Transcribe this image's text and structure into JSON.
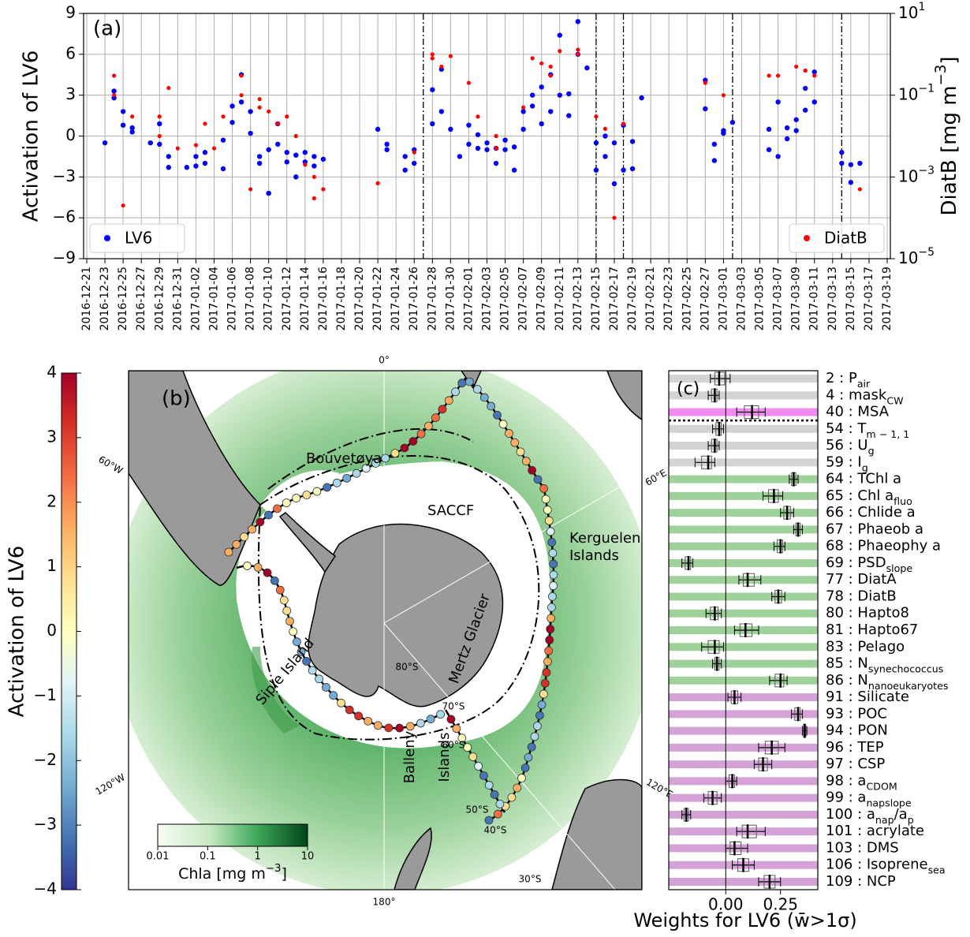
{
  "chart_data": [
    {
      "type": "scatter",
      "panel_label": "(a)",
      "y_label": "Activation of LV6",
      "y2_label": [
        "DiatB [mg m",
        "−3",
        "]"
      ],
      "xlim": [
        "2016-12-21",
        "2017-03-19"
      ],
      "xticks": [
        "2016-12-21",
        "2016-12-23",
        "2016-12-25",
        "2016-12-27",
        "2016-12-29",
        "2016-12-31",
        "2017-01-02",
        "2017-01-04",
        "2017-01-06",
        "2017-01-08",
        "2017-01-10",
        "2017-01-12",
        "2017-01-14",
        "2017-01-16",
        "2017-01-18",
        "2017-01-20",
        "2017-01-22",
        "2017-01-24",
        "2017-01-26",
        "2017-01-28",
        "2017-01-30",
        "2017-02-01",
        "2017-02-03",
        "2017-02-05",
        "2017-02-07",
        "2017-02-09",
        "2017-02-11",
        "2017-02-13",
        "2017-02-15",
        "2017-02-17",
        "2017-02-19",
        "2017-02-21",
        "2017-02-23",
        "2017-02-25",
        "2017-02-27",
        "2017-03-01",
        "2017-03-03",
        "2017-03-05",
        "2017-03-07",
        "2017-03-09",
        "2017-03-11",
        "2017-03-13",
        "2017-03-15",
        "2017-03-17",
        "2017-03-19"
      ],
      "ylim": [
        -9,
        9
      ],
      "yticks": [
        {
          "value": -9,
          "label": "−9"
        },
        {
          "value": -6,
          "label": "−6"
        },
        {
          "value": -3,
          "label": "−3"
        },
        0,
        3,
        6,
        9
      ],
      "y2lim": [
        1e-05,
        10
      ],
      "y2log": true,
      "y2ticks": [
        {
          "value": 1e-05,
          "label": "10",
          "exponent": "−5"
        },
        {
          "value": 0.001,
          "label": "10",
          "exponent": "−3"
        },
        {
          "value": 0.1,
          "label": "10",
          "exponent": "−1"
        },
        {
          "value": 10,
          "label": "10",
          "exponent": "1"
        }
      ],
      "grid": true,
      "event_lines": [
        "2017-01-27",
        "2017-02-15",
        "2017-02-18",
        "2017-03-02",
        "2017-03-14"
      ],
      "series": [
        {
          "name": "LV6",
          "color": "#0000ff",
          "legend": "lower left",
          "x": [
            "2016-12-23",
            "2016-12-24",
            "2016-12-24",
            "2016-12-25",
            "2016-12-25",
            "2016-12-26",
            "2016-12-26",
            "2016-12-28",
            "2016-12-29",
            "2016-12-29",
            "2016-12-30",
            "2016-12-30",
            "2017-01-01",
            "2017-01-02",
            "2017-01-02",
            "2017-01-03",
            "2017-01-03",
            "2017-01-05",
            "2017-01-05",
            "2017-01-06",
            "2017-01-06",
            "2017-01-07",
            "2017-01-07",
            "2017-01-08",
            "2017-01-08",
            "2017-01-09",
            "2017-01-09",
            "2017-01-10",
            "2017-01-10",
            "2017-01-11",
            "2017-01-11",
            "2017-01-12",
            "2017-01-12",
            "2017-01-13",
            "2017-01-13",
            "2017-01-14",
            "2017-01-14",
            "2017-01-15",
            "2017-01-15",
            "2017-01-16",
            "2017-01-22",
            "2017-01-23",
            "2017-01-23",
            "2017-01-25",
            "2017-01-25",
            "2017-01-26",
            "2017-01-26",
            "2017-01-28",
            "2017-01-28",
            "2017-01-29",
            "2017-01-29",
            "2017-01-30",
            "2017-01-31",
            "2017-02-01",
            "2017-02-01",
            "2017-02-02",
            "2017-02-02",
            "2017-02-03",
            "2017-02-03",
            "2017-02-04",
            "2017-02-04",
            "2017-02-05",
            "2017-02-05",
            "2017-02-06",
            "2017-02-06",
            "2017-02-07",
            "2017-02-07",
            "2017-02-08",
            "2017-02-08",
            "2017-02-09",
            "2017-02-09",
            "2017-02-10",
            "2017-02-10",
            "2017-02-11",
            "2017-02-11",
            "2017-02-12",
            "2017-02-12",
            "2017-02-13",
            "2017-02-13",
            "2017-02-14",
            "2017-02-15",
            "2017-02-15",
            "2017-02-16",
            "2017-02-16",
            "2017-02-17",
            "2017-02-17",
            "2017-02-18",
            "2017-02-18",
            "2017-02-19",
            "2017-02-19",
            "2017-02-20",
            "2017-02-27",
            "2017-02-27",
            "2017-02-28",
            "2017-02-28",
            "2017-03-01",
            "2017-03-01",
            "2017-03-02",
            "2017-03-06",
            "2017-03-06",
            "2017-03-07",
            "2017-03-07",
            "2017-03-08",
            "2017-03-08",
            "2017-03-09",
            "2017-03-09",
            "2017-03-10",
            "2017-03-10",
            "2017-03-11",
            "2017-03-11",
            "2017-03-14",
            "2017-03-14",
            "2017-03-15",
            "2017-03-15",
            "2017-03-16"
          ],
          "values": [
            -0.5,
            2.8,
            3.3,
            0.8,
            1.8,
            0.6,
            0.3,
            -0.5,
            -0.6,
            0.9,
            -1.5,
            -2.3,
            -2.3,
            -1.5,
            -2.2,
            -1.2,
            -2.0,
            -0.3,
            -2.4,
            1.0,
            2.2,
            2.5,
            4.5,
            1.8,
            0.2,
            -1.5,
            -2.0,
            -4.2,
            -1.0,
            0.9,
            -0.6,
            -1.2,
            -1.9,
            -1.4,
            -3.0,
            -1.9,
            -1.2,
            -2.2,
            -1.5,
            -1.7,
            0.5,
            -0.6,
            -1.0,
            -2.5,
            -1.5,
            -2.0,
            -1.0,
            0.9,
            3.4,
            4.9,
            1.8,
            0.5,
            -1.5,
            0.8,
            -0.6,
            0.1,
            -0.9,
            -1.0,
            -0.5,
            -2.0,
            -0.9,
            -1.0,
            -0.3,
            -2.5,
            -0.8,
            0.5,
            1.8,
            3.0,
            2.2,
            3.6,
            0.9,
            1.8,
            4.5,
            7.4,
            3.0,
            1.5,
            3.1,
            8.4,
            6.0,
            5.0,
            -0.5,
            -2.5,
            -1.5,
            0.0,
            -0.5,
            -3.5,
            -2.5,
            0.8,
            -2.4,
            -0.4,
            2.8,
            4.1,
            2.0,
            -0.6,
            -1.8,
            0.2,
            0.4,
            1.0,
            0.5,
            -1.0,
            2.5,
            -1.5,
            0.6,
            -0.2,
            1.2,
            0.4,
            3.5,
            1.9,
            4.7,
            2.5,
            -1.2,
            -2.0,
            -3.4,
            -2.1,
            -2.0
          ]
        },
        {
          "name": "DiatB",
          "color": "#ff0000",
          "axis": "y2",
          "legend": "lower right",
          "x": [
            "2016-12-24",
            "2016-12-24",
            "2016-12-25",
            "2016-12-26",
            "2016-12-29",
            "2016-12-29",
            "2016-12-30",
            "2016-12-31",
            "2017-01-02",
            "2017-01-03",
            "2017-01-04",
            "2017-01-05",
            "2017-01-07",
            "2017-01-07",
            "2017-01-08",
            "2017-01-09",
            "2017-01-09",
            "2017-01-10",
            "2017-01-11",
            "2017-01-12",
            "2017-01-13",
            "2017-01-14",
            "2017-01-15",
            "2017-01-15",
            "2017-01-16",
            "2017-01-22",
            "2017-01-26",
            "2017-01-28",
            "2017-01-28",
            "2017-01-29",
            "2017-01-30",
            "2017-02-01",
            "2017-02-02",
            "2017-02-04",
            "2017-02-04",
            "2017-02-07",
            "2017-02-08",
            "2017-02-09",
            "2017-02-10",
            "2017-02-10",
            "2017-02-11",
            "2017-02-13",
            "2017-02-13",
            "2017-02-15",
            "2017-02-16",
            "2017-02-17",
            "2017-02-18",
            "2017-02-27",
            "2017-03-01",
            "2017-03-06",
            "2017-03-07",
            "2017-03-09",
            "2017-03-10",
            "2017-03-10",
            "2017-03-11",
            "2017-03-16"
          ],
          "values": [
            0.3,
            0.1,
            0.0002,
            0.03,
            0.03,
            0.01,
            0.15,
            0.005,
            0.006,
            0.02,
            0.005,
            0.03,
            0.3,
            0.1,
            0.0005,
            0.08,
            0.05,
            0.04,
            0.02,
            0.03,
            0.01,
            0.002,
            0.0003,
            0.001,
            0.0005,
            0.0007,
            0.004,
            0.8,
            1.0,
            0.5,
            0.9,
            0.2,
            0.03,
            0.005,
            0.01,
            0.05,
            0.8,
            0.6,
            0.5,
            0.3,
            1.2,
            1.3,
            1.0,
            0.03,
            0.015,
            0.0001,
            0.02,
            0.2,
            0.1,
            0.3,
            0.3,
            0.5,
            0.4,
            0.4,
            0.3,
            0.0005
          ]
        }
      ]
    },
    {
      "type": "map",
      "panel_label": "(b)",
      "meridians": [
        "0°",
        "60°E",
        "120°E",
        "180°",
        "120°W",
        "60°W"
      ],
      "parallels": [
        "80°S",
        "70°S",
        "60°S",
        "50°S",
        "40°S",
        "30°S"
      ],
      "places": [
        "Bouvetøya",
        "SACCF",
        [
          "Kerguelen",
          "Islands"
        ],
        "Mertz Glacier",
        "Siple Island",
        [
          "Balleny",
          "Islands"
        ]
      ],
      "colorbar": {
        "label": "Activation of LV6",
        "lim": [
          -4,
          4
        ],
        "ticks": [
          {
            "value": -4,
            "label": "−4"
          },
          {
            "value": -3,
            "label": "−3"
          },
          {
            "value": -2,
            "label": "−2"
          },
          {
            "value": -1,
            "label": "−1"
          },
          0,
          1,
          2,
          3,
          4
        ]
      },
      "chla_colorbar": {
        "label": [
          "Chla [mg m",
          "−3",
          "]"
        ],
        "lim": [
          0.01,
          10
        ],
        "log": true,
        "ticks": [
          0.01,
          0.1,
          1,
          10
        ]
      }
    },
    {
      "type": "box",
      "panel_label": "(c)",
      "x_label": "Weights for LV6 (w̄>1σ)",
      "xlim": [
        -0.26,
        0.42
      ],
      "xticks": [
        {
          "value": 0,
          "label": "0.00"
        },
        {
          "value": 0.25,
          "label": "0.25"
        }
      ],
      "separator_after": 2,
      "labels": [
        [
          "2 : P",
          "air"
        ],
        [
          "4 : mask",
          "CW"
        ],
        [
          "40 : MSA"
        ],
        [
          "54 : T",
          "m − 1, 1"
        ],
        [
          "56 : U",
          "g"
        ],
        [
          "59 : I",
          "g"
        ],
        [
          "64 : TChl a"
        ],
        [
          "65 : Chl a",
          "fluo"
        ],
        [
          "66 : Chlide a"
        ],
        [
          "67 : Phaeob a"
        ],
        [
          "68 : Phaeophy a"
        ],
        [
          "69 : PSD",
          "slope"
        ],
        [
          "77 : DiatA"
        ],
        [
          "78 : DiatB"
        ],
        [
          "80 : Hapto8"
        ],
        [
          "81 : Hapto67"
        ],
        [
          "83 : Pelago"
        ],
        [
          "85 : N",
          "synechococcus"
        ],
        [
          "86 : N",
          "nanoeukaryotes"
        ],
        [
          "91 : Silicate"
        ],
        [
          "93 : POC"
        ],
        [
          "94 : PON"
        ],
        [
          "96 : TEP"
        ],
        [
          "97 : CSP"
        ],
        [
          "98 : a",
          "CDOM"
        ],
        [
          "99 : a",
          "napslope"
        ],
        [
          "100 : a",
          "nap",
          "/a",
          "p"
        ],
        [
          "101 : acrylate"
        ],
        [
          "103 : DMS"
        ],
        [
          "106 : Isoprene",
          "sea"
        ],
        [
          "109 : NCP"
        ]
      ],
      "colors": [
        "#d3d3d3",
        "#d3d3d3",
        "#f08cf0",
        "#d3d3d3",
        "#d3d3d3",
        "#d3d3d3",
        "#9fd19a",
        "#9fd19a",
        "#9fd19a",
        "#9fd19a",
        "#9fd19a",
        "#9fd19a",
        "#9fd19a",
        "#9fd19a",
        "#9fd19a",
        "#9fd19a",
        "#9fd19a",
        "#9fd19a",
        "#9fd19a",
        "#d4a2d6",
        "#d4a2d6",
        "#d4a2d6",
        "#d4a2d6",
        "#d4a2d6",
        "#d4a2d6",
        "#d4a2d6",
        "#d4a2d6",
        "#d4a2d6",
        "#d4a2d6",
        "#d4a2d6",
        "#d4a2d6"
      ],
      "values": [
        -0.03,
        -0.05,
        0.12,
        -0.03,
        -0.05,
        -0.08,
        0.31,
        0.22,
        0.28,
        0.33,
        0.25,
        -0.17,
        0.1,
        0.24,
        -0.05,
        0.09,
        -0.05,
        -0.04,
        0.25,
        0.04,
        0.33,
        0.36,
        0.21,
        0.17,
        0.03,
        -0.06,
        -0.18,
        0.1,
        0.04,
        0.08,
        0.2
      ],
      "low": [
        -0.07,
        -0.08,
        0.05,
        -0.06,
        -0.08,
        -0.14,
        0.29,
        0.17,
        0.25,
        0.31,
        0.22,
        -0.2,
        0.06,
        0.21,
        -0.09,
        0.04,
        -0.11,
        -0.06,
        0.2,
        0.01,
        0.3,
        0.35,
        0.15,
        0.13,
        0.0,
        -0.1,
        -0.2,
        0.05,
        0.0,
        0.03,
        0.15
      ],
      "high": [
        0.02,
        -0.03,
        0.18,
        -0.01,
        -0.03,
        -0.05,
        0.33,
        0.26,
        0.31,
        0.35,
        0.27,
        -0.15,
        0.16,
        0.27,
        -0.02,
        0.15,
        -0.01,
        -0.02,
        0.28,
        0.07,
        0.35,
        0.37,
        0.27,
        0.21,
        0.05,
        -0.02,
        -0.16,
        0.18,
        0.1,
        0.13,
        0.25
      ]
    }
  ]
}
